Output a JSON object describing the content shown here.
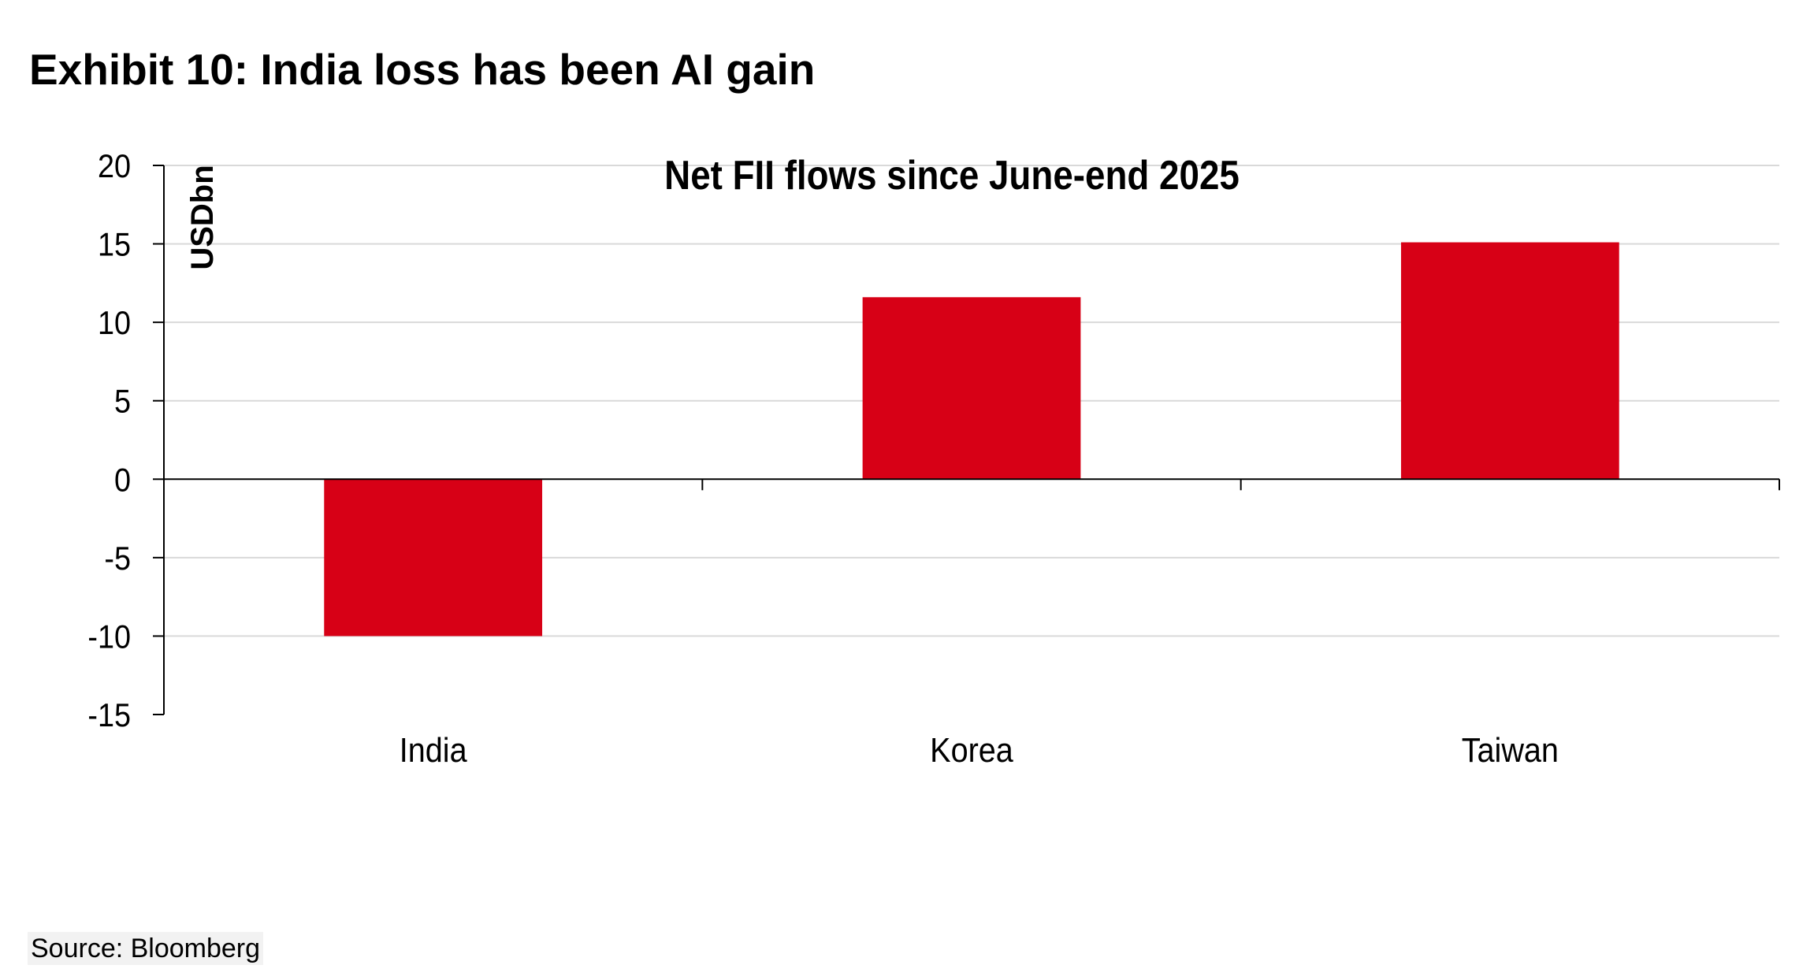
{
  "exhibit_title": "Exhibit 10: India loss has been AI gain",
  "source": "Source: Bloomberg",
  "colors": {
    "bar": "#d70016",
    "grid": "#d9d9d9",
    "axis": "#000000"
  },
  "chart_data": {
    "type": "bar",
    "title": "Net FII flows since June-end 2025",
    "ylabel": "USDbn",
    "xlabel": "",
    "categories": [
      "India",
      "Korea",
      "Taiwan"
    ],
    "values": [
      -10,
      11.6,
      15.1
    ],
    "ylim": [
      -15,
      20
    ],
    "yticks": [
      20,
      15,
      10,
      5,
      0,
      -5,
      -10,
      -15
    ],
    "ytick_labels": [
      "20",
      "15",
      "10",
      "5",
      "0",
      "-5",
      "-10",
      "-15"
    ],
    "grid": true,
    "legend": "none"
  }
}
